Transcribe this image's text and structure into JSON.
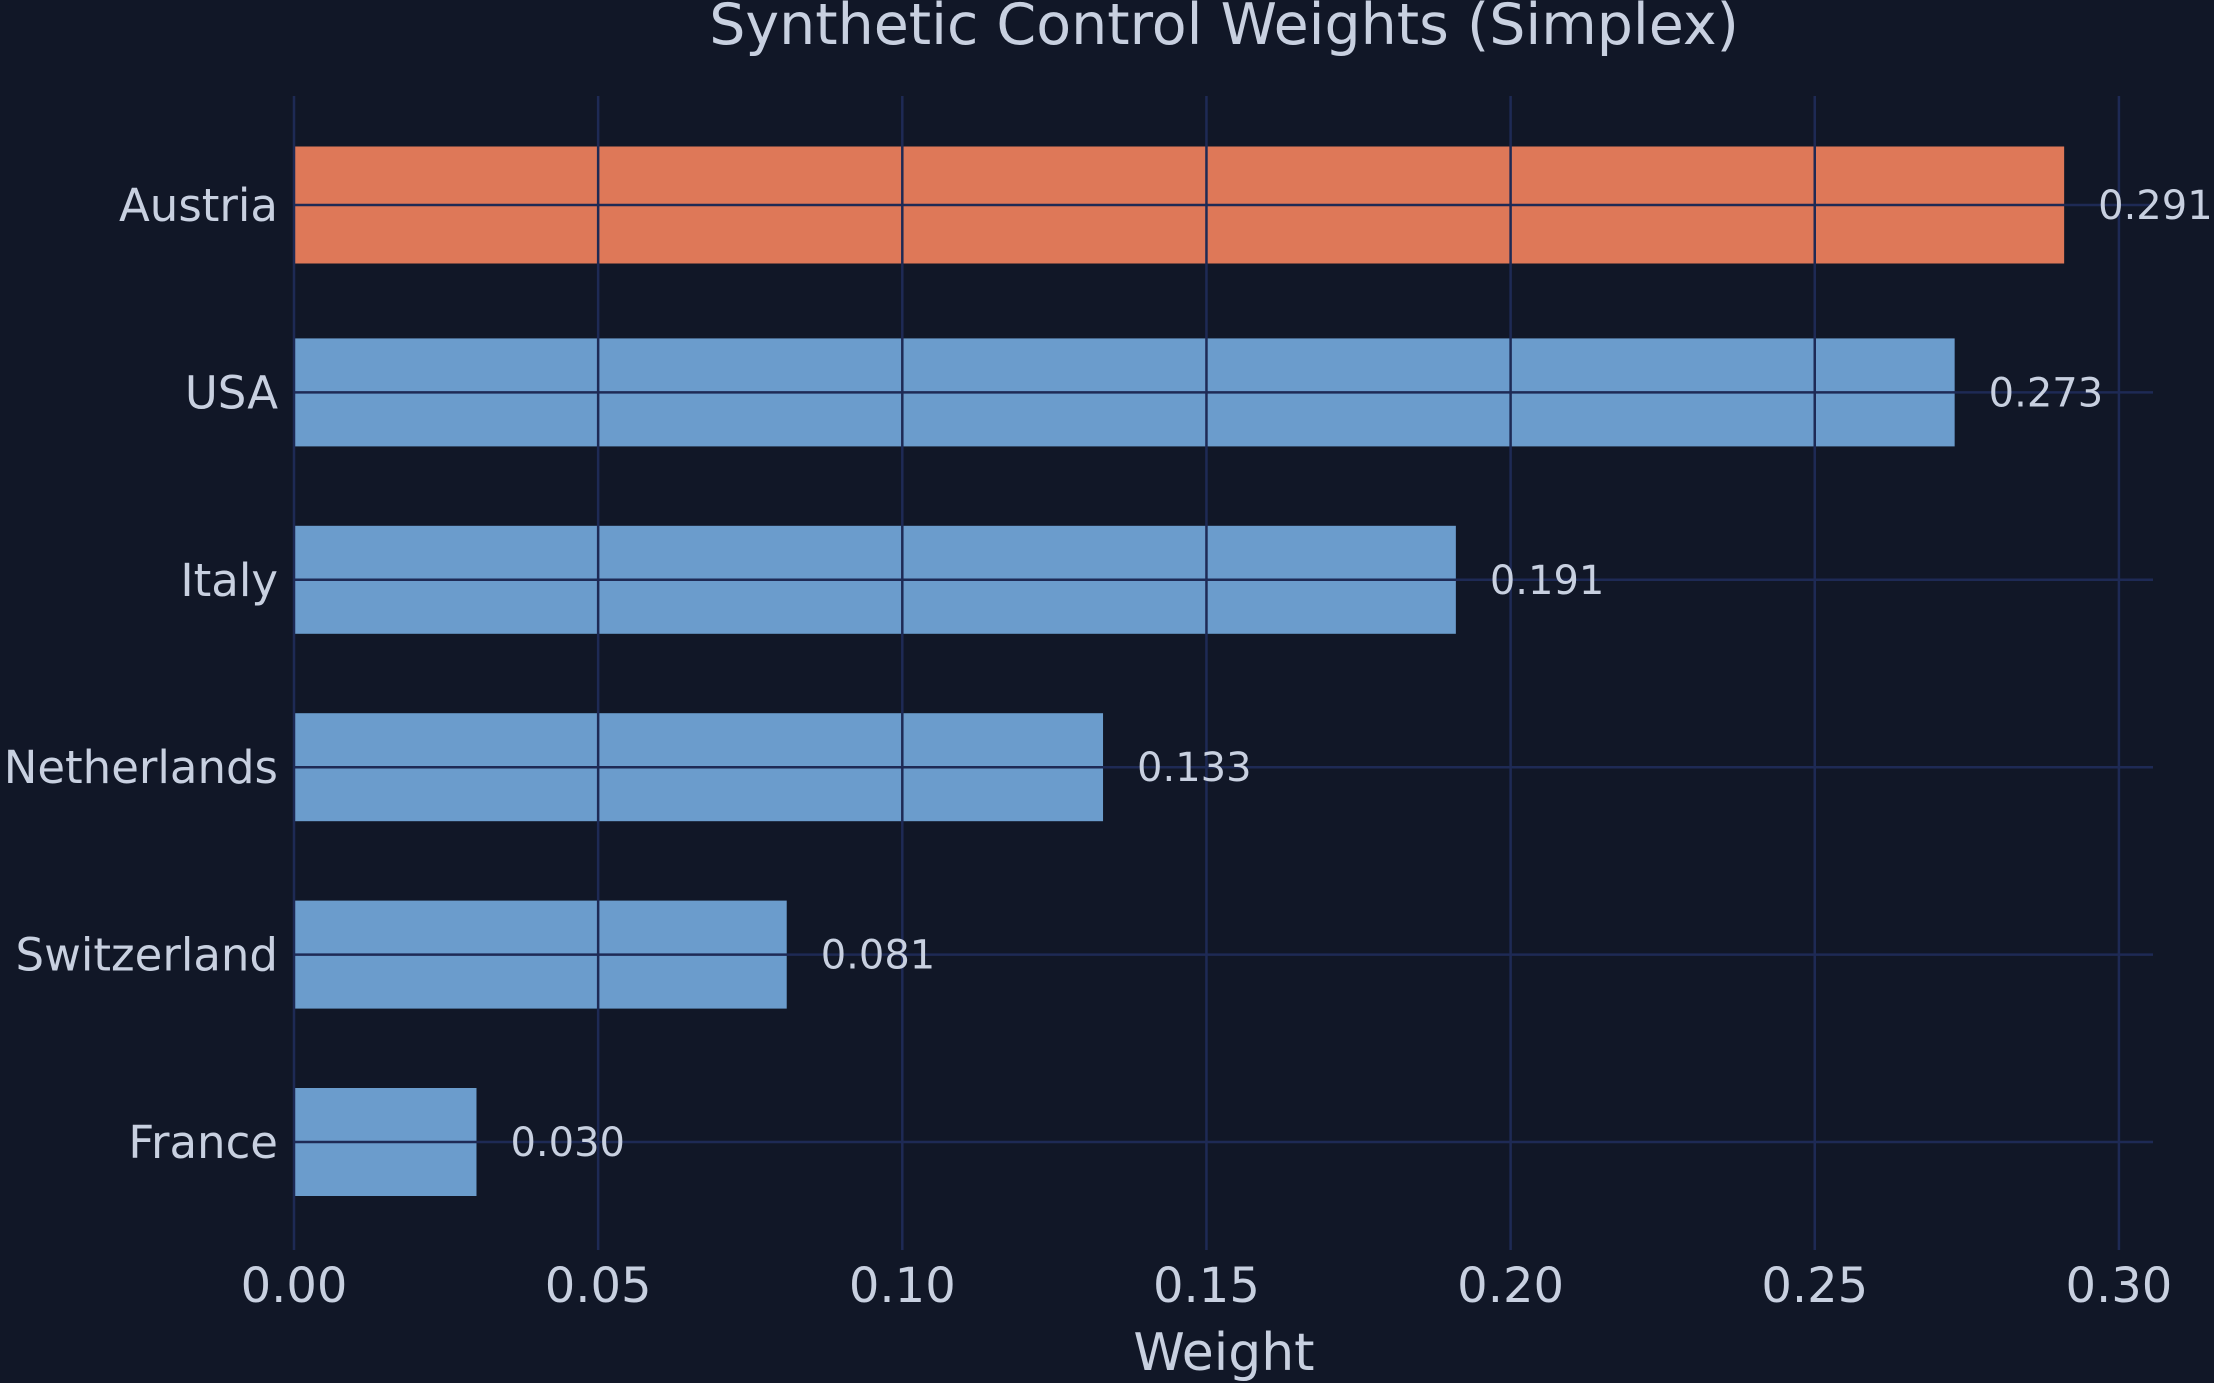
{
  "chart_data": {
    "type": "bar",
    "orientation": "horizontal",
    "title": "Synthetic Control Weights (Simplex)",
    "xlabel": "Weight",
    "ylabel": "",
    "xlim": [
      0,
      0.305
    ],
    "xticks": [
      0.0,
      0.05,
      0.1,
      0.15,
      0.2,
      0.25,
      0.3
    ],
    "xtick_labels": [
      "0.00",
      "0.05",
      "0.10",
      "0.15",
      "0.20",
      "0.25",
      "0.30"
    ],
    "categories": [
      "Austria",
      "USA",
      "Italy",
      "Netherlands",
      "Switzerland",
      "France"
    ],
    "values": [
      0.291,
      0.273,
      0.191,
      0.133,
      0.081,
      0.03
    ],
    "value_labels": [
      "0.291",
      "0.273",
      "0.191",
      "0.133",
      "0.081",
      "0.030"
    ],
    "highlight_category": "Austria",
    "grid": true,
    "colors": {
      "background": "#111727",
      "highlight_bar": "#de7858",
      "bar": "#6b9ccc",
      "grid": "#1e2a55",
      "text": "#c8d0e0"
    }
  }
}
